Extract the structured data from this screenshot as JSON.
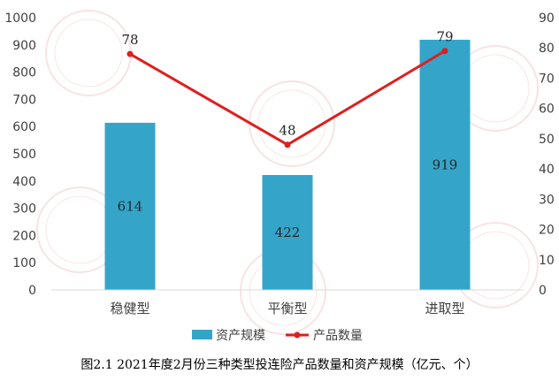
{
  "chart_data": {
    "type": "bar",
    "categories": [
      "稳健型",
      "平衡型",
      "进取型"
    ],
    "series": [
      {
        "name": "资产规模",
        "type": "bar",
        "axis": "left",
        "values": [
          614,
          422,
          919
        ],
        "color": "#34a5c9"
      },
      {
        "name": "产品数量",
        "type": "line",
        "axis": "right",
        "values": [
          78,
          48,
          79
        ],
        "color": "#e01e1e"
      }
    ],
    "y_left": {
      "range": [
        0,
        1000
      ],
      "ticks": [
        "0",
        "100",
        "200",
        "300",
        "400",
        "500",
        "600",
        "700",
        "800",
        "900",
        "1000"
      ]
    },
    "y_right": {
      "range": [
        0,
        90
      ],
      "ticks": [
        "0",
        "10",
        "20",
        "30",
        "40",
        "50",
        "60",
        "70",
        "80",
        "90"
      ]
    },
    "grid": false,
    "legend_position": "bottom",
    "caption": "图2.1  2021年度2月份三种类型投连险产品数量和资产规模（亿元、个）"
  }
}
